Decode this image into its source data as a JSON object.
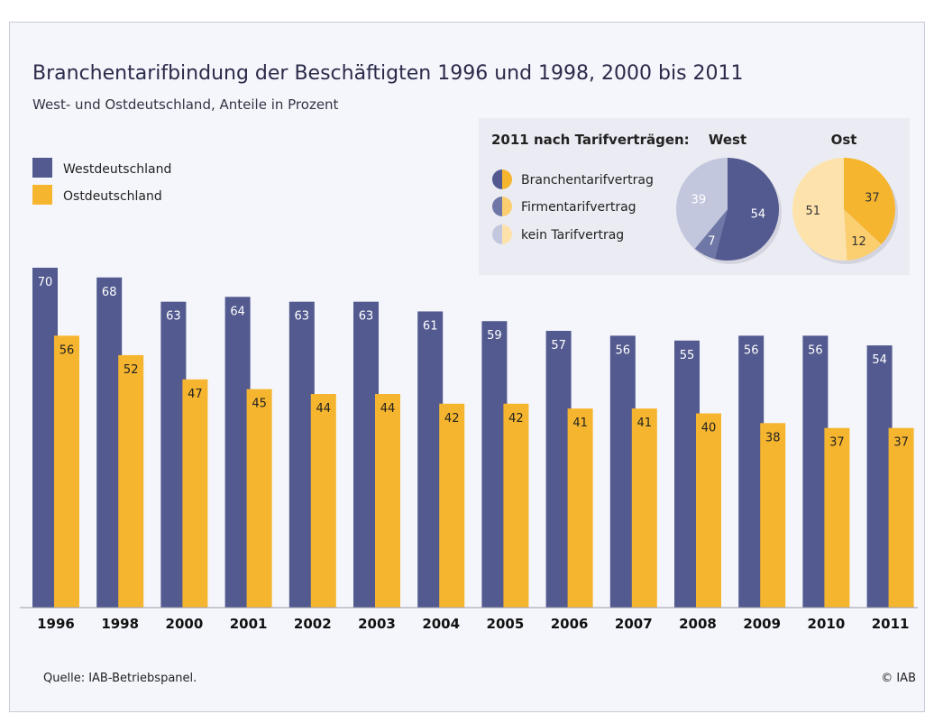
{
  "title": "Branchentarifbindung der Beschäftigten 1996 und 1998, 2000 bis 2011",
  "subtitle": "West- und Ostdeutschland, Anteile in Prozent",
  "footer": {
    "source": "Quelle: IAB-Betriebspanel.",
    "copyright": "© IAB"
  },
  "colors": {
    "west": "#525a8f",
    "ost": "#f6b52e",
    "west_firmen": "#6f77a6",
    "west_kein": "#c3c7dd",
    "ost_firmen": "#fbce70",
    "ost_kein": "#fde2ac"
  },
  "chart_data": [
    {
      "type": "bar",
      "categories": [
        "1996",
        "1998",
        "2000",
        "2001",
        "2002",
        "2003",
        "2004",
        "2005",
        "2006",
        "2007",
        "2008",
        "2009",
        "2010",
        "2011"
      ],
      "series": [
        {
          "name": "Westdeutschland",
          "values": [
            70,
            68,
            63,
            64,
            63,
            63,
            61,
            59,
            57,
            56,
            55,
            56,
            56,
            54
          ]
        },
        {
          "name": "Ostdeutschland",
          "values": [
            56,
            52,
            47,
            45,
            44,
            44,
            42,
            42,
            41,
            41,
            40,
            38,
            37,
            37
          ]
        }
      ],
      "ylim": [
        0,
        70
      ],
      "legend": "top-left",
      "grid": false
    },
    {
      "type": "pie",
      "title": "2011 nach Tarifverträgen:",
      "legend": [
        "Branchentarifvertrag",
        "Firmentarifvertrag",
        "kein Tarifvertrag"
      ],
      "pies": [
        {
          "name": "West",
          "values": [
            54,
            7,
            39
          ]
        },
        {
          "name": "Ost",
          "values": [
            37,
            12,
            51
          ]
        }
      ]
    }
  ]
}
